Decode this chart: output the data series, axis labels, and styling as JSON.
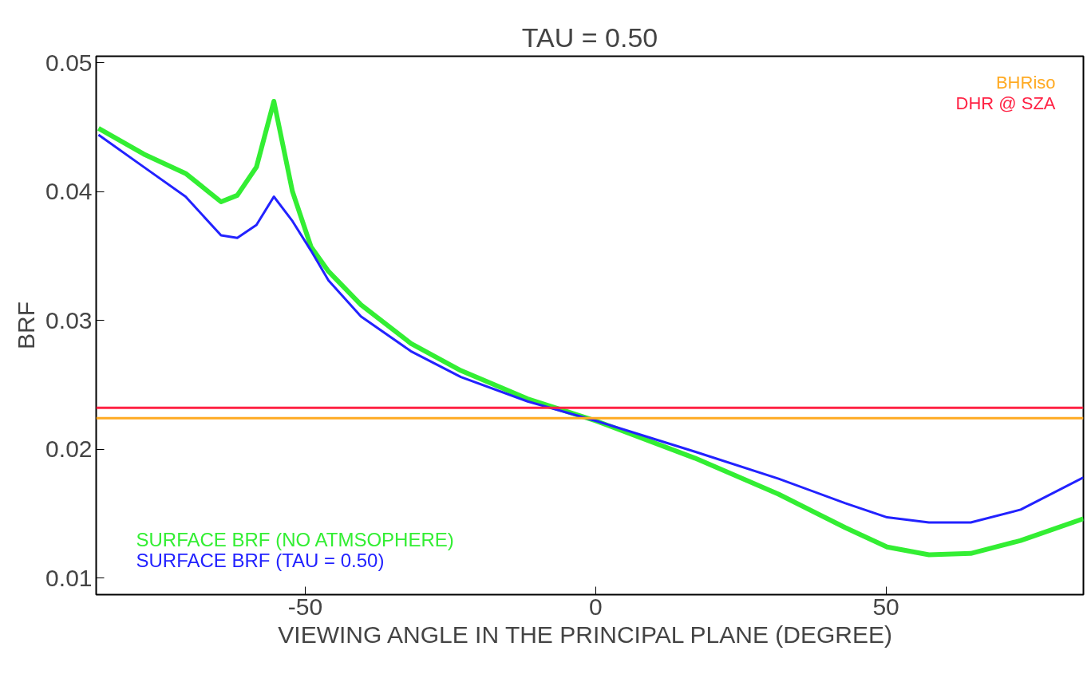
{
  "chart_data": {
    "type": "line",
    "title": "TAU = 0.50",
    "xlabel": "VIEWING ANGLE  IN THE PRINCIPAL PLANE (DEGREE)",
    "ylabel": "BRF",
    "xlim": [
      -86,
      84
    ],
    "ylim": [
      0.0087,
      0.0505
    ],
    "xticks": [
      -50,
      0,
      50
    ],
    "yticks": [
      0.01,
      0.02,
      0.03,
      0.04,
      0.05
    ],
    "grid": false,
    "marker": "none",
    "line_style": "solid",
    "series": [
      {
        "name": "SURFACE BRF (NO ATMSOPHERE)",
        "color": "#33ee33",
        "x": [
          -85.6,
          -77.8,
          -70.6,
          -64.5,
          -61.7,
          -58.4,
          -55.4,
          -52.2,
          -49,
          -46,
          -40.4,
          -31.8,
          -23.2,
          -11.7,
          0,
          17.1,
          31.5,
          43,
          50.2,
          57.4,
          64.6,
          73.2,
          84
        ],
        "values": [
          0.0449,
          0.0429,
          0.0414,
          0.0392,
          0.0397,
          0.0419,
          0.047,
          0.04,
          0.0357,
          0.0338,
          0.0312,
          0.0282,
          0.0261,
          0.0239,
          0.0222,
          0.0193,
          0.0165,
          0.0139,
          0.0124,
          0.0118,
          0.0119,
          0.0129,
          0.0146
        ]
      },
      {
        "name": "SURFACE BRF (TAU = 0.50)",
        "color": "#2222ff",
        "x": [
          -85.6,
          -77.8,
          -70.6,
          -64.5,
          -61.7,
          -58.4,
          -55.4,
          -52.2,
          -49,
          -46,
          -40.4,
          -31.8,
          -23.2,
          -11.7,
          0,
          17.1,
          31.5,
          43,
          50.2,
          57.4,
          64.6,
          73.2,
          84
        ],
        "values": [
          0.0444,
          0.0419,
          0.0396,
          0.0366,
          0.0364,
          0.0374,
          0.0396,
          0.0377,
          0.0354,
          0.0331,
          0.0303,
          0.0276,
          0.0256,
          0.0237,
          0.0222,
          0.0198,
          0.0177,
          0.0158,
          0.0147,
          0.0143,
          0.0143,
          0.0153,
          0.0178
        ]
      }
    ],
    "ref_lines": [
      {
        "axis": "y",
        "value": 0.0224,
        "label": "BHRiso",
        "color": "#ffaa22"
      },
      {
        "axis": "y",
        "value": 0.0232,
        "label": "DHR @ SZA",
        "color": "#ff2244"
      }
    ]
  }
}
